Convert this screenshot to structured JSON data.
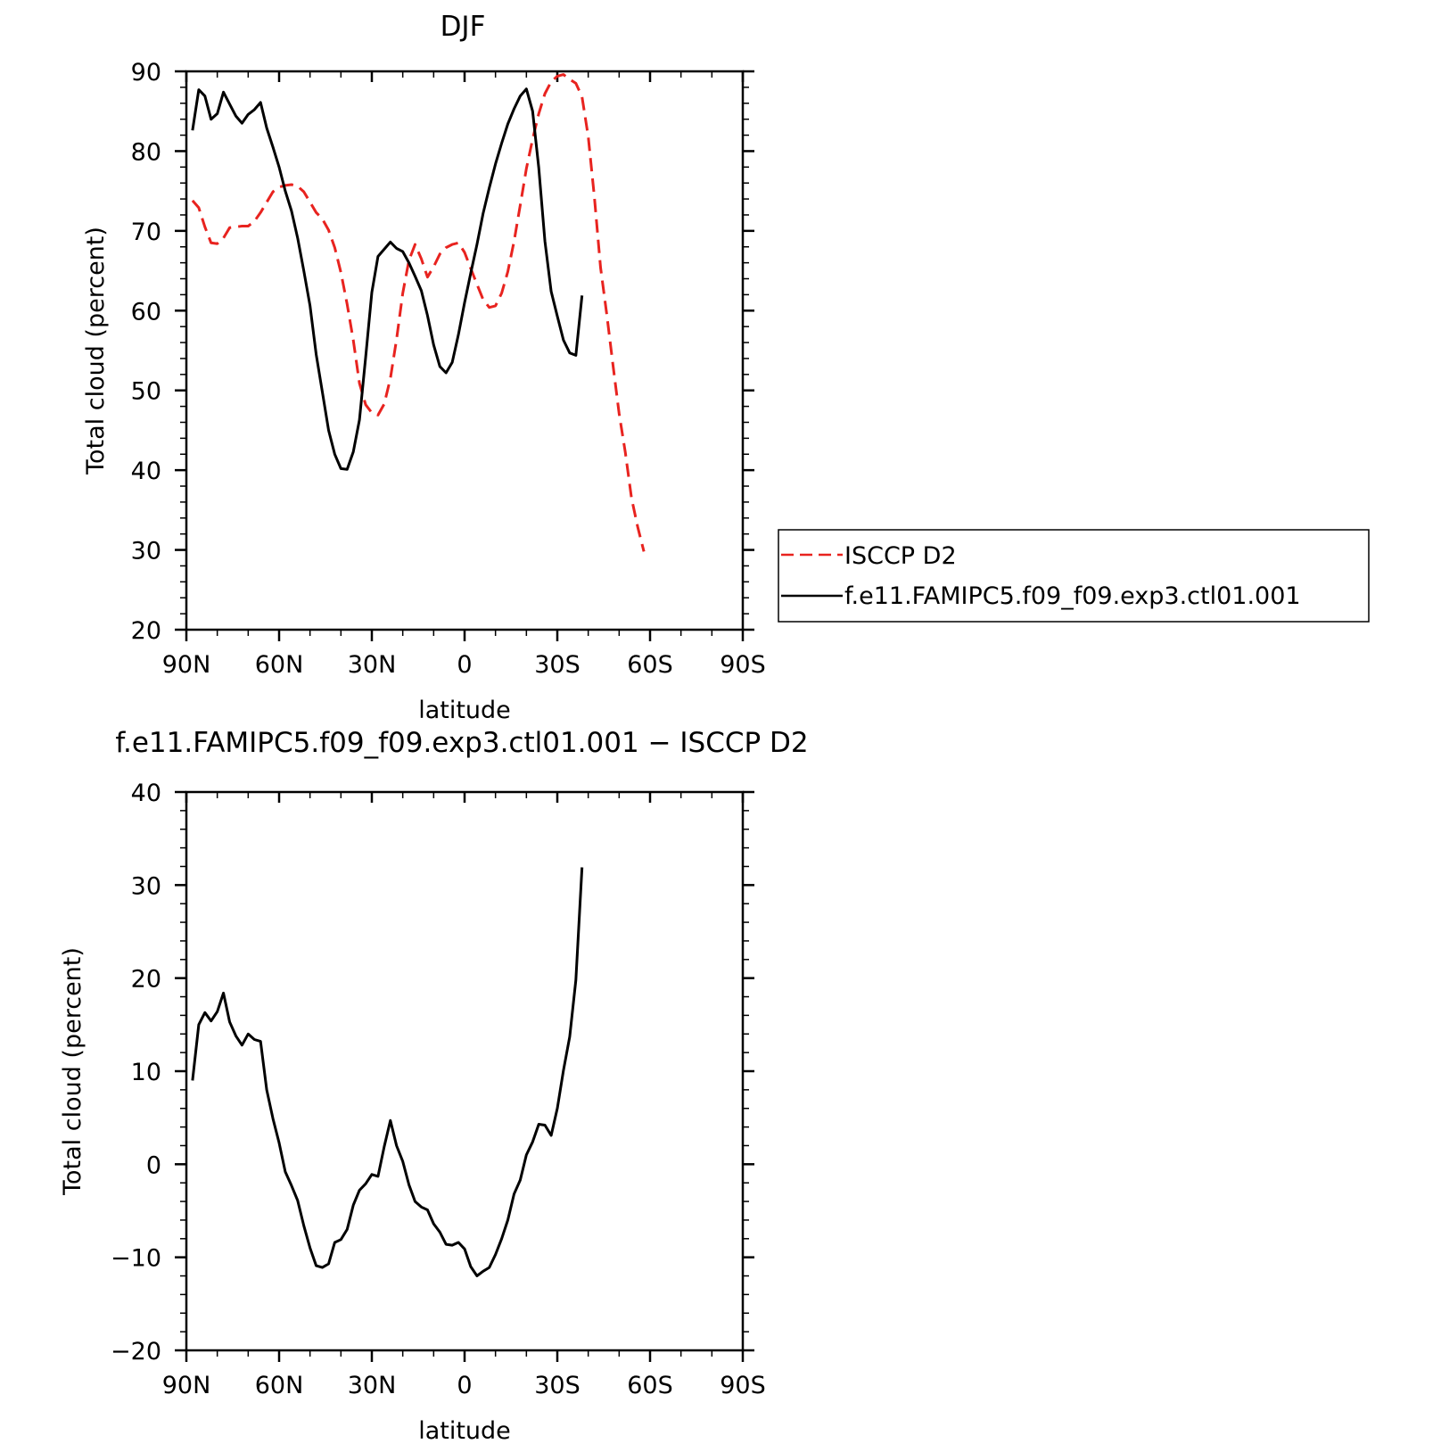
{
  "chart_data": [
    {
      "type": "line",
      "title": "DJF",
      "xlabel": "latitude",
      "ylabel": "Total cloud (percent)",
      "xlim": [
        90,
        -90
      ],
      "ylim": [
        20,
        90
      ],
      "x_ticks": [
        {
          "value": 90,
          "label": "90N"
        },
        {
          "value": 60,
          "label": "60N"
        },
        {
          "value": 30,
          "label": "30N"
        },
        {
          "value": 0,
          "label": "0"
        },
        {
          "value": -30,
          "label": "30S"
        },
        {
          "value": -60,
          "label": "60S"
        },
        {
          "value": -90,
          "label": "90S"
        }
      ],
      "y_ticks": [
        20,
        30,
        40,
        50,
        60,
        70,
        80,
        90
      ],
      "legend_position": "right",
      "series": [
        {
          "name": "ISCCP D2",
          "color": "#e8231f",
          "dash": "dashed",
          "points": [
            [
              88,
              73.8
            ],
            [
              86,
              72.9
            ],
            [
              84,
              70.5
            ],
            [
              82,
              68.5
            ],
            [
              80,
              68.4
            ],
            [
              78,
              69.1
            ],
            [
              76,
              70.4
            ],
            [
              74,
              70.5
            ],
            [
              72,
              70.6
            ],
            [
              70,
              70.6
            ],
            [
              68,
              71.2
            ],
            [
              66,
              72.3
            ],
            [
              64,
              73.6
            ],
            [
              62,
              74.9
            ],
            [
              60,
              75.5
            ],
            [
              58,
              75.7
            ],
            [
              56,
              75.8
            ],
            [
              54,
              75.6
            ],
            [
              52,
              74.9
            ],
            [
              50,
              73.6
            ],
            [
              48,
              72.3
            ],
            [
              46,
              71.5
            ],
            [
              44,
              70.1
            ],
            [
              42,
              67.9
            ],
            [
              40,
              64.8
            ],
            [
              38,
              60.8
            ],
            [
              36,
              56.3
            ],
            [
              34,
              50.9
            ],
            [
              32,
              48.2
            ],
            [
              30,
              47.2
            ],
            [
              28,
              46.9
            ],
            [
              26,
              48.3
            ],
            [
              24,
              51.5
            ],
            [
              22,
              56.4
            ],
            [
              20,
              62.2
            ],
            [
              18,
              66.3
            ],
            [
              16,
              68.3
            ],
            [
              14,
              66.5
            ],
            [
              12,
              64.2
            ],
            [
              10,
              65.5
            ],
            [
              8,
              67.1
            ],
            [
              6,
              67.9
            ],
            [
              4,
              68.3
            ],
            [
              2,
              68.5
            ],
            [
              0,
              67.3
            ],
            [
              -2,
              65.3
            ],
            [
              -4,
              63.3
            ],
            [
              -6,
              61.4
            ],
            [
              -8,
              60.4
            ],
            [
              -10,
              60.6
            ],
            [
              -12,
              62.2
            ],
            [
              -14,
              64.9
            ],
            [
              -16,
              68.7
            ],
            [
              -18,
              73.2
            ],
            [
              -20,
              77.8
            ],
            [
              -22,
              81.5
            ],
            [
              -24,
              84.7
            ],
            [
              -26,
              87.2
            ],
            [
              -28,
              88.7
            ],
            [
              -30,
              89.4
            ],
            [
              -32,
              89.6
            ],
            [
              -34,
              89.0
            ],
            [
              -36,
              88.5
            ],
            [
              -38,
              86.8
            ],
            [
              -40,
              81.8
            ],
            [
              -42,
              74.2
            ],
            [
              -44,
              65.4
            ],
            [
              -46,
              59.5
            ],
            [
              -48,
              53.2
            ],
            [
              -50,
              47.1
            ],
            [
              -52,
              42.2
            ],
            [
              -54,
              36.5
            ],
            [
              -56,
              32.9
            ],
            [
              -58,
              29.8
            ]
          ]
        },
        {
          "name": "f.e11.FAMIPC5.f09_f09.exp3.ctl01.001",
          "color": "#000000",
          "dash": "solid",
          "points": [
            [
              88,
              82.6
            ],
            [
              86,
              87.7
            ],
            [
              84,
              86.9
            ],
            [
              82,
              84.0
            ],
            [
              80,
              84.7
            ],
            [
              78,
              87.4
            ],
            [
              76,
              85.9
            ],
            [
              74,
              84.4
            ],
            [
              72,
              83.5
            ],
            [
              70,
              84.6
            ],
            [
              68,
              85.2
            ],
            [
              66,
              86.1
            ],
            [
              64,
              82.9
            ],
            [
              62,
              80.5
            ],
            [
              60,
              78.0
            ],
            [
              58,
              75.0
            ],
            [
              56,
              72.5
            ],
            [
              54,
              69.1
            ],
            [
              52,
              65.0
            ],
            [
              50,
              60.6
            ],
            [
              48,
              54.5
            ],
            [
              46,
              49.8
            ],
            [
              44,
              45.0
            ],
            [
              42,
              42.0
            ],
            [
              40,
              40.2
            ],
            [
              38,
              40.1
            ],
            [
              36,
              42.3
            ],
            [
              34,
              46.3
            ],
            [
              32,
              54.2
            ],
            [
              30,
              62.3
            ],
            [
              28,
              66.8
            ],
            [
              26,
              67.7
            ],
            [
              24,
              68.6
            ],
            [
              22,
              67.8
            ],
            [
              20,
              67.4
            ],
            [
              18,
              66.0
            ],
            [
              16,
              64.3
            ],
            [
              14,
              62.5
            ],
            [
              12,
              59.4
            ],
            [
              10,
              55.7
            ],
            [
              8,
              53.0
            ],
            [
              6,
              52.2
            ],
            [
              4,
              53.5
            ],
            [
              2,
              57.0
            ],
            [
              0,
              61.0
            ],
            [
              -2,
              64.7
            ],
            [
              -4,
              68.3
            ],
            [
              -6,
              72.2
            ],
            [
              -8,
              75.4
            ],
            [
              -10,
              78.4
            ],
            [
              -12,
              81.0
            ],
            [
              -14,
              83.4
            ],
            [
              -16,
              85.3
            ],
            [
              -18,
              86.9
            ],
            [
              -20,
              87.8
            ],
            [
              -22,
              85.0
            ],
            [
              -24,
              77.9
            ],
            [
              -26,
              68.7
            ],
            [
              -28,
              62.4
            ],
            [
              -30,
              59.3
            ],
            [
              -32,
              56.3
            ],
            [
              -34,
              54.7
            ],
            [
              -36,
              54.4
            ],
            [
              -38,
              61.9
            ]
          ]
        }
      ]
    },
    {
      "type": "line",
      "title": "f.e11.FAMIPC5.f09_f09.exp3.ctl01.001 − ISCCP D2",
      "xlabel": "latitude",
      "ylabel": "Total cloud (percent)",
      "xlim": [
        90,
        -90
      ],
      "ylim": [
        -20,
        40
      ],
      "x_ticks": [
        {
          "value": 90,
          "label": "90N"
        },
        {
          "value": 60,
          "label": "60N"
        },
        {
          "value": 30,
          "label": "30N"
        },
        {
          "value": 0,
          "label": "0"
        },
        {
          "value": -30,
          "label": "30S"
        },
        {
          "value": -60,
          "label": "60S"
        },
        {
          "value": -90,
          "label": "90S"
        }
      ],
      "y_ticks": [
        -20,
        -10,
        0,
        10,
        20,
        30,
        40
      ],
      "y_tick_labels": [
        "−20",
        "−10",
        "0",
        "10",
        "20",
        "30",
        "40"
      ],
      "series": [
        {
          "color": "#000000",
          "dash": "solid",
          "points": [
            [
              88,
              9.0
            ],
            [
              86,
              15.0
            ],
            [
              84,
              16.3
            ],
            [
              82,
              15.4
            ],
            [
              80,
              16.4
            ],
            [
              78,
              18.4
            ],
            [
              76,
              15.3
            ],
            [
              74,
              13.8
            ],
            [
              72,
              12.8
            ],
            [
              70,
              14.0
            ],
            [
              68,
              13.4
            ],
            [
              66,
              13.2
            ],
            [
              64,
              8.0
            ],
            [
              62,
              4.9
            ],
            [
              60,
              2.3
            ],
            [
              58,
              -0.8
            ],
            [
              56,
              -2.3
            ],
            [
              54,
              -3.9
            ],
            [
              52,
              -6.6
            ],
            [
              50,
              -9.0
            ],
            [
              48,
              -10.9
            ],
            [
              46,
              -11.1
            ],
            [
              44,
              -10.7
            ],
            [
              42,
              -8.4
            ],
            [
              40,
              -8.1
            ],
            [
              38,
              -7.0
            ],
            [
              36,
              -4.4
            ],
            [
              34,
              -2.8
            ],
            [
              32,
              -2.1
            ],
            [
              30,
              -1.1
            ],
            [
              28,
              -1.3
            ],
            [
              26,
              1.9
            ],
            [
              24,
              4.7
            ],
            [
              22,
              2.0
            ],
            [
              20,
              0.3
            ],
            [
              18,
              -2.2
            ],
            [
              16,
              -4.0
            ],
            [
              14,
              -4.6
            ],
            [
              12,
              -4.9
            ],
            [
              10,
              -6.4
            ],
            [
              8,
              -7.3
            ],
            [
              6,
              -8.6
            ],
            [
              4,
              -8.7
            ],
            [
              2,
              -8.4
            ],
            [
              0,
              -9.1
            ],
            [
              -2,
              -11.0
            ],
            [
              -4,
              -12.0
            ],
            [
              -6,
              -11.5
            ],
            [
              -8,
              -11.1
            ],
            [
              -10,
              -9.7
            ],
            [
              -12,
              -8.0
            ],
            [
              -14,
              -6.0
            ],
            [
              -16,
              -3.2
            ],
            [
              -18,
              -1.7
            ],
            [
              -20,
              1.0
            ],
            [
              -22,
              2.4
            ],
            [
              -24,
              4.3
            ],
            [
              -26,
              4.2
            ],
            [
              -28,
              3.1
            ],
            [
              -30,
              6.0
            ],
            [
              -32,
              10.1
            ],
            [
              -34,
              13.7
            ],
            [
              -36,
              19.8
            ],
            [
              -38,
              31.9
            ]
          ]
        }
      ]
    }
  ]
}
